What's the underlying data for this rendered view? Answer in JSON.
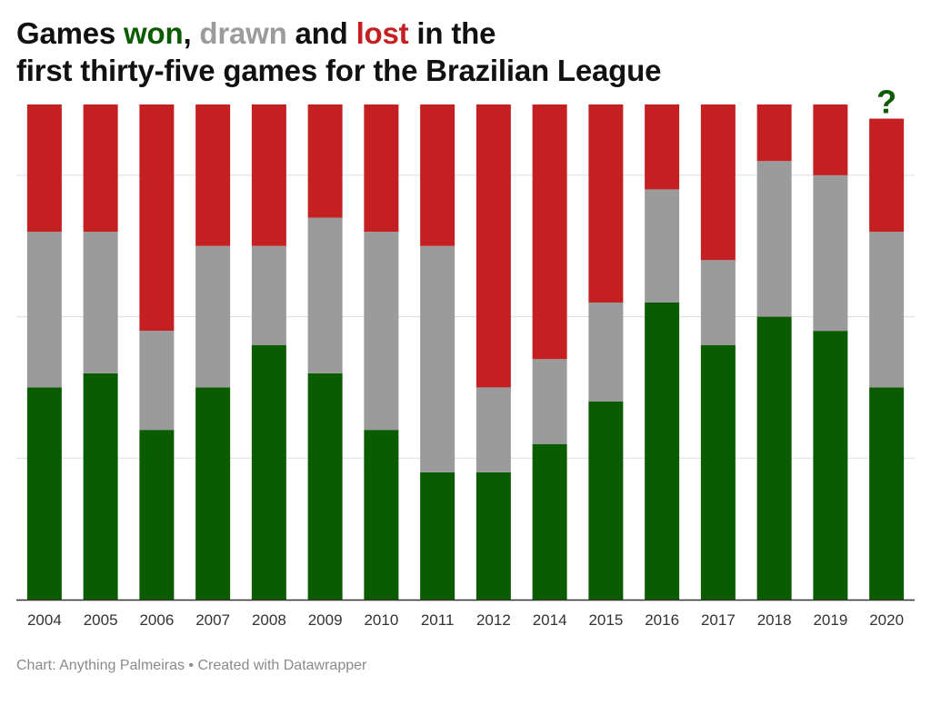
{
  "title": {
    "prefix": "Games ",
    "won": "won",
    "comma": ", ",
    "drawn": "drawn",
    "and": " and ",
    "lost": "lost",
    "suffix1": " in the",
    "line2": "first thirty-five games for the Brazilian League"
  },
  "footer": {
    "source": "Chart: Anything Palmeiras",
    "separator": " • ",
    "credit": "Created with Datawrapper"
  },
  "colors": {
    "won": "#0b5c00",
    "drawn": "#9b9b9b",
    "lost": "#c42021",
    "grid": "#dddddd",
    "axis": "#333333",
    "annotation": "#0b5c00"
  },
  "chart_data": {
    "type": "bar",
    "stacked": true,
    "categories": [
      "2004",
      "2005",
      "2006",
      "2007",
      "2008",
      "2009",
      "2010",
      "2011",
      "2012",
      "2014",
      "2015",
      "2016",
      "2017",
      "2018",
      "2019",
      "2020"
    ],
    "series": [
      {
        "name": "won",
        "values": [
          15,
          16,
          12,
          15,
          18,
          16,
          12,
          9,
          9,
          11,
          14,
          21,
          18,
          20,
          19,
          15
        ]
      },
      {
        "name": "drawn",
        "values": [
          11,
          10,
          7,
          10,
          7,
          11,
          14,
          16,
          6,
          6,
          7,
          8,
          6,
          11,
          11,
          11
        ]
      },
      {
        "name": "lost",
        "values": [
          9,
          9,
          16,
          10,
          10,
          8,
          9,
          10,
          20,
          18,
          14,
          6,
          11,
          4,
          5,
          8
        ]
      }
    ],
    "ylim": [
      0,
      35
    ],
    "yticks": [
      0,
      10,
      20,
      30
    ],
    "grid": true,
    "annotations": [
      {
        "category": "2020",
        "text": "?"
      }
    ]
  }
}
